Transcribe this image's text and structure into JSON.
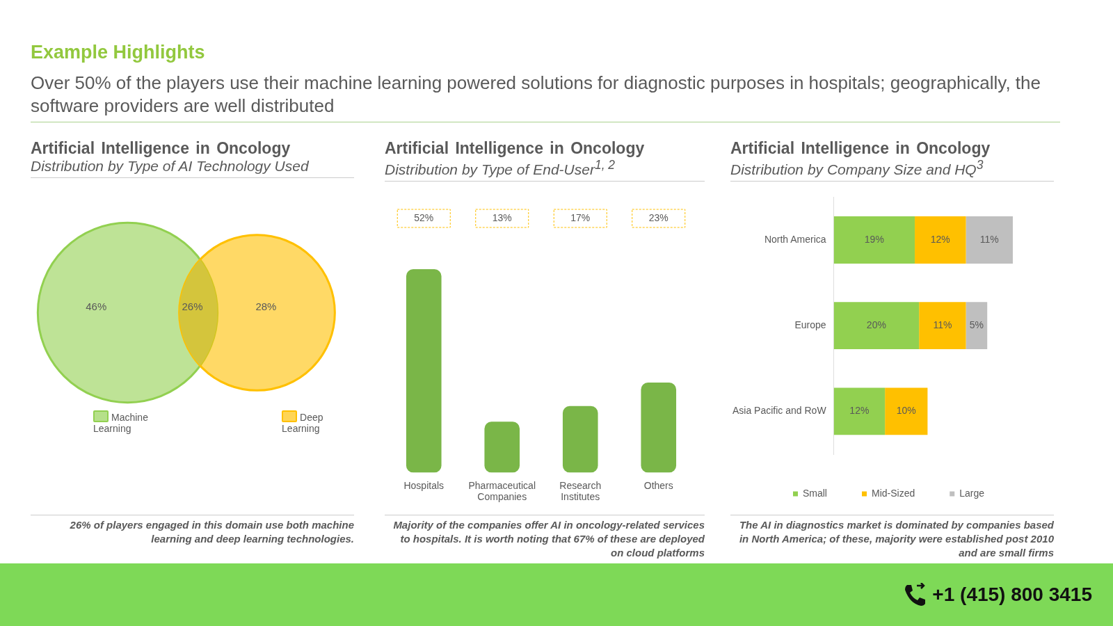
{
  "chart_data": [
    {
      "type": "other",
      "title": "Example Highlights",
      "subtitle": "Over 50% of the players use their machine learning powered solutions for diagnostic purposes in hospitals; geographically, the software providers are well distributed",
      "annotations": [
        "+1 (415) 800 3415"
      ]
    },
    {
      "type": "other",
      "title": "Artificial Intelligence in Oncology",
      "subtitle": "Distribution by Type of AI Technology Used",
      "categories": [
        "Machine Learning",
        null,
        "Deep Learning"
      ],
      "values": [
        46,
        26,
        28
      ],
      "value_labels": [
        "46%",
        "26%",
        "28%"
      ],
      "colors": [
        "#92d050",
        "#d4c53c",
        "#ffc000"
      ],
      "annotations": [
        "26% of players engaged in this domain use both machine learning and deep learning technologies."
      ]
    },
    {
      "type": "bar",
      "title": "Artificial Intelligence in Oncology",
      "subtitle": "Distribution by Type of End-User$^{1, 2}$",
      "categories": [
        "Hospitals",
        "Pharmaceutical Companies",
        "Research Institutes",
        "Others"
      ],
      "values": [
        52,
        13,
        17,
        23
      ],
      "value_labels": [
        "52%",
        "13%",
        "17%",
        "23%"
      ],
      "color": "#7ab648",
      "grid": false,
      "annotations": [
        "Majority of the companies offer AI in oncology-related services to hospitals. It is worth noting that 67% of these are deployed on cloud platforms"
      ]
    },
    {
      "type": "bar",
      "orientation": "horizontal",
      "stacked": true,
      "title": "Artificial Intelligence in Oncology",
      "subtitle": "Distribution by Company Size and HQ$^{3}$",
      "categories": [
        "North America",
        "Europe",
        "Asia Pacific and RoW"
      ],
      "legend": "bottom",
      "grid": false,
      "series": [
        {
          "name": "Small",
          "color": "#92d050",
          "values": [
            19,
            20,
            12
          ],
          "value_labels": [
            "19%",
            "20%",
            "12%"
          ]
        },
        {
          "name": "Mid-Sized",
          "color": "#ffc000",
          "values": [
            12,
            11,
            10
          ],
          "value_labels": [
            "12%",
            "11%",
            "10%"
          ]
        },
        {
          "name": "Large",
          "color": "#bfbfbf",
          "values": [
            11,
            5,
            null
          ],
          "value_labels": [
            "11%",
            "5%",
            null
          ]
        }
      ],
      "annotations": [
        "The AI in diagnostics market is dominated by companies based in North America; of these, majority were established post 2010 and are small firms"
      ]
    }
  ]
}
